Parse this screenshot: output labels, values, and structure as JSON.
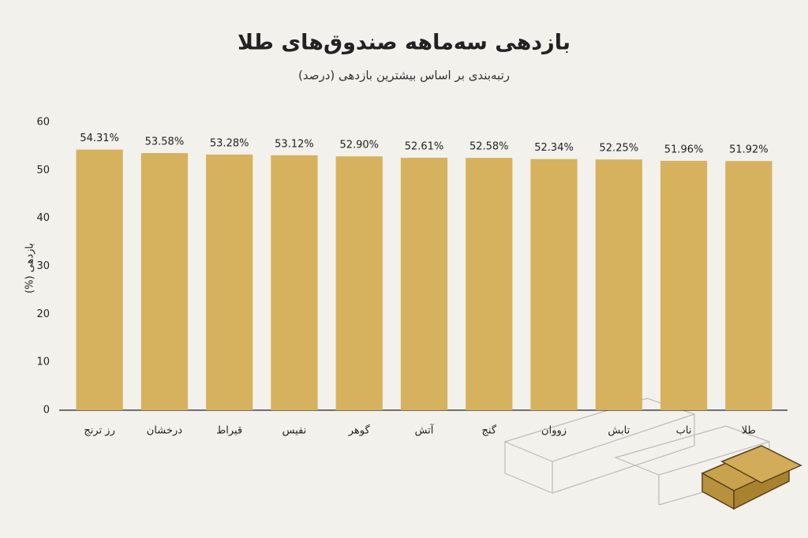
{
  "chart_data": {
    "type": "bar",
    "title": "بازدهی سه‌ماهه صندوق‌های طلا",
    "subtitle": "رتبه‌بندی بر اساس بیشترین بازدهی (درصد)",
    "y_label": "بازدهی (%)",
    "categories": [
      "رز ترنج",
      "درخشان",
      "قیراط",
      "نفیس",
      "گوهر",
      "آتش",
      "گنج",
      "زووان",
      "تابش",
      "ناب",
      "طلا"
    ],
    "values": [
      54.31,
      53.58,
      53.28,
      53.12,
      52.9,
      52.61,
      52.58,
      52.34,
      52.25,
      51.96,
      51.92
    ],
    "value_labels": [
      "54.31%",
      "53.58%",
      "53.28%",
      "53.12%",
      "52.90%",
      "52.61%",
      "52.58%",
      "52.34%",
      "52.25%",
      "51.96%",
      "51.92%"
    ],
    "color": "#d6b25e",
    "ylim": [
      0,
      60
    ],
    "yticks": [
      0,
      10,
      20,
      30,
      40,
      50,
      60
    ],
    "grid": false
  }
}
